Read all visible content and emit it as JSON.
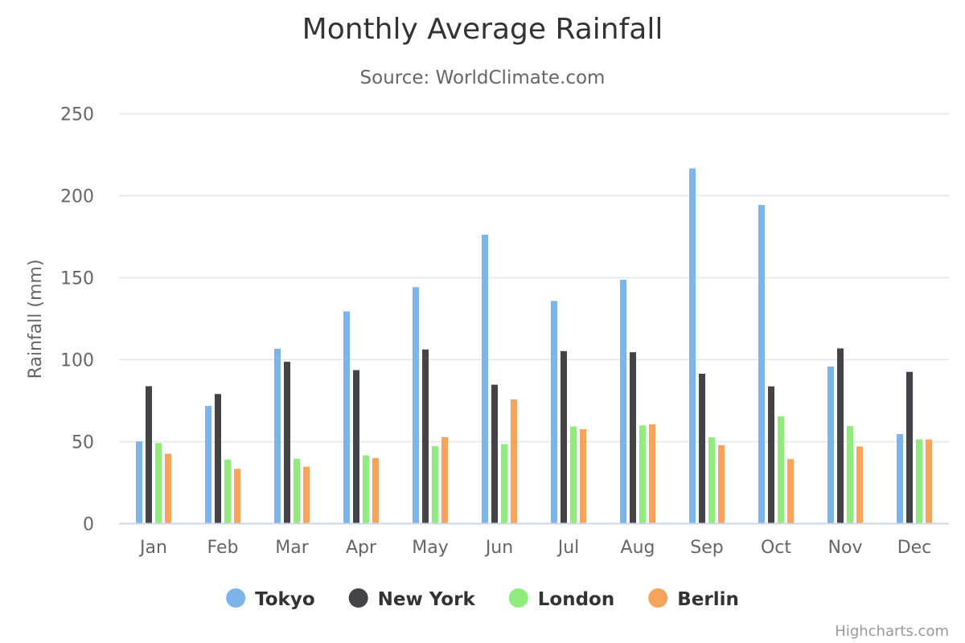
{
  "chart_data": {
    "type": "bar",
    "title": "Monthly Average Rainfall",
    "subtitle": "Source: WorldClimate.com",
    "xlabel": "",
    "ylabel": "Rainfall (mm)",
    "ylim": [
      0,
      250
    ],
    "yticks": [
      0,
      50,
      100,
      150,
      200,
      250
    ],
    "ytick_labels": [
      "0",
      "50",
      "100",
      "150",
      "200",
      "250"
    ],
    "grid": true,
    "legend_position": "bottom-center",
    "categories": [
      "Jan",
      "Feb",
      "Mar",
      "Apr",
      "May",
      "Jun",
      "Jul",
      "Aug",
      "Sep",
      "Oct",
      "Nov",
      "Dec"
    ],
    "series": [
      {
        "name": "Tokyo",
        "color": "#7cb5ec",
        "values": [
          49.9,
          71.5,
          106.4,
          129.2,
          144.0,
          176.0,
          135.6,
          148.5,
          216.4,
          194.1,
          95.6,
          54.4
        ]
      },
      {
        "name": "New York",
        "color": "#434348",
        "values": [
          83.6,
          78.8,
          98.5,
          93.4,
          106.0,
          84.5,
          105.0,
          104.3,
          91.2,
          83.5,
          106.6,
          92.3
        ]
      },
      {
        "name": "London",
        "color": "#90ed7d",
        "values": [
          48.9,
          38.8,
          39.3,
          41.4,
          47.0,
          48.3,
          59.0,
          59.6,
          52.4,
          65.2,
          59.3,
          51.2
        ]
      },
      {
        "name": "Berlin",
        "color": "#f7a35c",
        "values": [
          42.4,
          33.2,
          34.5,
          39.7,
          52.6,
          75.5,
          57.4,
          60.4,
          47.6,
          39.1,
          46.8,
          51.1
        ]
      }
    ],
    "credits": "Highcharts.com"
  }
}
